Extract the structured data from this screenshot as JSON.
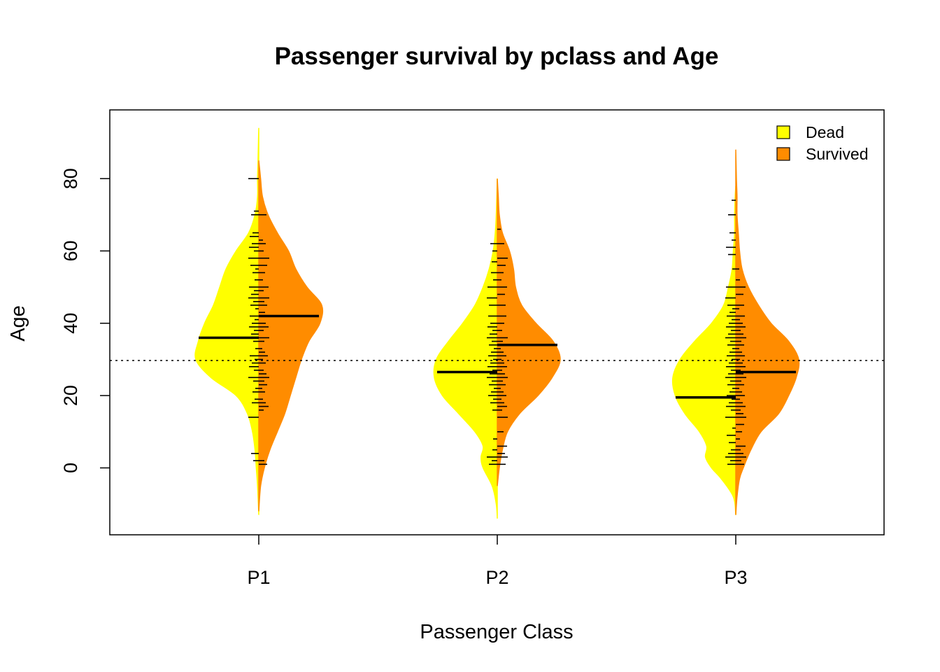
{
  "chart_data": {
    "type": "split-violin",
    "title": "Passenger survival by pclass and Age",
    "xlabel": "Passenger Class",
    "ylabel": "Age",
    "categories": [
      "P1",
      "P2",
      "P3"
    ],
    "yticks": [
      0,
      20,
      40,
      60,
      80
    ],
    "ylim": [
      -18.5,
      99
    ],
    "overall_mean_line": 29.7,
    "legend": {
      "placement": "top-right",
      "entries": [
        {
          "label": "Dead",
          "color": "#ffff00"
        },
        {
          "label": "Survived",
          "color": "#ff8c00"
        }
      ]
    },
    "series": [
      {
        "name": "Dead",
        "color": "#ffff00",
        "side": "left",
        "groups": [
          {
            "category": "P1",
            "mean": 36,
            "density": [
              [
                -13,
                0
              ],
              [
                -5,
                1
              ],
              [
                0,
                2
              ],
              [
                5,
                3
              ],
              [
                10,
                5
              ],
              [
                15,
                9
              ],
              [
                20,
                18
              ],
              [
                25,
                38
              ],
              [
                30,
                50
              ],
              [
                35,
                48
              ],
              [
                40,
                43
              ],
              [
                45,
                36
              ],
              [
                50,
                31
              ],
              [
                55,
                26
              ],
              [
                60,
                18
              ],
              [
                65,
                8
              ],
              [
                70,
                3
              ],
              [
                75,
                1
              ],
              [
                80,
                1
              ],
              [
                85,
                0.6
              ],
              [
                90,
                0.3
              ],
              [
                94,
                0
              ]
            ],
            "ages": [
              2,
              4,
              14,
              18,
              19,
              21,
              22,
              24,
              25,
              27,
              28,
              29,
              30,
              31,
              33,
              35,
              36,
              37,
              38,
              39,
              40,
              41,
              42,
              44,
              45,
              46,
              47,
              48,
              49,
              50,
              52,
              54,
              55,
              56,
              58,
              60,
              61,
              62,
              64,
              65,
              70,
              71,
              80
            ]
          },
          {
            "category": "P2",
            "mean": 26.5,
            "density": [
              [
                -14,
                0
              ],
              [
                -10,
                1
              ],
              [
                -5,
                5
              ],
              [
                0,
                14
              ],
              [
                3,
                16
              ],
              [
                6,
                14
              ],
              [
                10,
                22
              ],
              [
                15,
                38
              ],
              [
                20,
                54
              ],
              [
                25,
                62
              ],
              [
                30,
                60
              ],
              [
                35,
                48
              ],
              [
                40,
                34
              ],
              [
                45,
                22
              ],
              [
                50,
                14
              ],
              [
                55,
                8
              ],
              [
                60,
                4
              ],
              [
                65,
                2
              ],
              [
                70,
                1
              ],
              [
                75,
                0.5
              ],
              [
                80,
                0
              ]
            ],
            "ages": [
              1,
              2,
              3,
              5,
              8,
              16,
              18,
              19,
              20,
              21,
              22,
              23,
              24,
              25,
              26,
              27,
              28,
              29,
              30,
              31,
              32,
              33,
              34,
              35,
              36,
              37,
              38,
              39,
              40,
              42,
              45,
              47,
              50,
              52,
              54,
              57,
              60,
              62
            ]
          },
          {
            "category": "P3",
            "mean": 19.5,
            "density": [
              [
                -13,
                0
              ],
              [
                -8,
                2
              ],
              [
                -3,
                12
              ],
              [
                0,
                20
              ],
              [
                3,
                25
              ],
              [
                6,
                24
              ],
              [
                10,
                30
              ],
              [
                15,
                42
              ],
              [
                20,
                50
              ],
              [
                25,
                52
              ],
              [
                30,
                46
              ],
              [
                35,
                34
              ],
              [
                40,
                20
              ],
              [
                45,
                10
              ],
              [
                50,
                6
              ],
              [
                55,
                3
              ],
              [
                60,
                2
              ],
              [
                65,
                1
              ],
              [
                70,
                1
              ],
              [
                75,
                0.5
              ],
              [
                78,
                0
              ]
            ],
            "ages": [
              1,
              2,
              3,
              4,
              5,
              7,
              9,
              11,
              14,
              16,
              17,
              18,
              19,
              20,
              21,
              22,
              23,
              24,
              25,
              26,
              27,
              28,
              29,
              30,
              31,
              32,
              33,
              34,
              35,
              36,
              37,
              38,
              39,
              40,
              41,
              42,
              43,
              44,
              45,
              47,
              50,
              55,
              59,
              61,
              63,
              65,
              70,
              74
            ]
          }
        ]
      },
      {
        "name": "Survived",
        "color": "#ff8c00",
        "side": "right",
        "groups": [
          {
            "category": "P1",
            "mean": 42,
            "density": [
              [
                -12,
                0
              ],
              [
                -5,
                1
              ],
              [
                0,
                3
              ],
              [
                5,
                6
              ],
              [
                10,
                10
              ],
              [
                15,
                14
              ],
              [
                20,
                17
              ],
              [
                25,
                20
              ],
              [
                30,
                23
              ],
              [
                35,
                27
              ],
              [
                40,
                33
              ],
              [
                45,
                34
              ],
              [
                50,
                26
              ],
              [
                55,
                20
              ],
              [
                60,
                16
              ],
              [
                65,
                10
              ],
              [
                70,
                5
              ],
              [
                75,
                2
              ],
              [
                80,
                1
              ],
              [
                85,
                0
              ]
            ],
            "ages": [
              1,
              2,
              16,
              17,
              18,
              19,
              21,
              22,
              23,
              24,
              25,
              26,
              27,
              29,
              30,
              31,
              32,
              33,
              35,
              36,
              38,
              39,
              40,
              42,
              43,
              45,
              46,
              47,
              49,
              50,
              52,
              54,
              56,
              58,
              60,
              62,
              63,
              70
            ]
          },
          {
            "category": "P2",
            "mean": 34,
            "density": [
              [
                -5,
                0
              ],
              [
                0,
                2
              ],
              [
                5,
                5
              ],
              [
                10,
                10
              ],
              [
                15,
                22
              ],
              [
                20,
                40
              ],
              [
                25,
                54
              ],
              [
                30,
                62
              ],
              [
                35,
                55
              ],
              [
                40,
                38
              ],
              [
                45,
                24
              ],
              [
                50,
                18
              ],
              [
                55,
                16
              ],
              [
                60,
                12
              ],
              [
                65,
                5
              ],
              [
                70,
                2
              ],
              [
                75,
                1
              ],
              [
                80,
                0
              ]
            ],
            "ages": [
              1,
              3,
              4,
              6,
              10,
              14,
              16,
              17,
              18,
              19,
              20,
              21,
              22,
              23,
              24,
              25,
              26,
              27,
              28,
              29,
              30,
              31,
              32,
              33,
              34,
              35,
              36,
              38,
              40,
              42,
              45,
              48,
              50,
              52,
              54,
              56,
              58,
              62,
              66
            ]
          },
          {
            "category": "P3",
            "mean": 26.5,
            "density": [
              [
                -13,
                0
              ],
              [
                -8,
                1
              ],
              [
                -3,
                3
              ],
              [
                0,
                6
              ],
              [
                5,
                12
              ],
              [
                10,
                20
              ],
              [
                15,
                34
              ],
              [
                20,
                42
              ],
              [
                25,
                48
              ],
              [
                30,
                50
              ],
              [
                35,
                42
              ],
              [
                40,
                28
              ],
              [
                45,
                18
              ],
              [
                50,
                10
              ],
              [
                55,
                5
              ],
              [
                60,
                3
              ],
              [
                65,
                2
              ],
              [
                70,
                1
              ],
              [
                75,
                1
              ],
              [
                80,
                0.5
              ],
              [
                88,
                0
              ]
            ],
            "ages": [
              1,
              2,
              3,
              4,
              5,
              6,
              8,
              10,
              12,
              14,
              15,
              16,
              17,
              18,
              19,
              20,
              21,
              22,
              23,
              24,
              25,
              26,
              27,
              28,
              29,
              30,
              31,
              32,
              33,
              34,
              35,
              36,
              37,
              38,
              39,
              40,
              41,
              42,
              44,
              45,
              48,
              50,
              52,
              55
            ]
          }
        ]
      }
    ]
  }
}
